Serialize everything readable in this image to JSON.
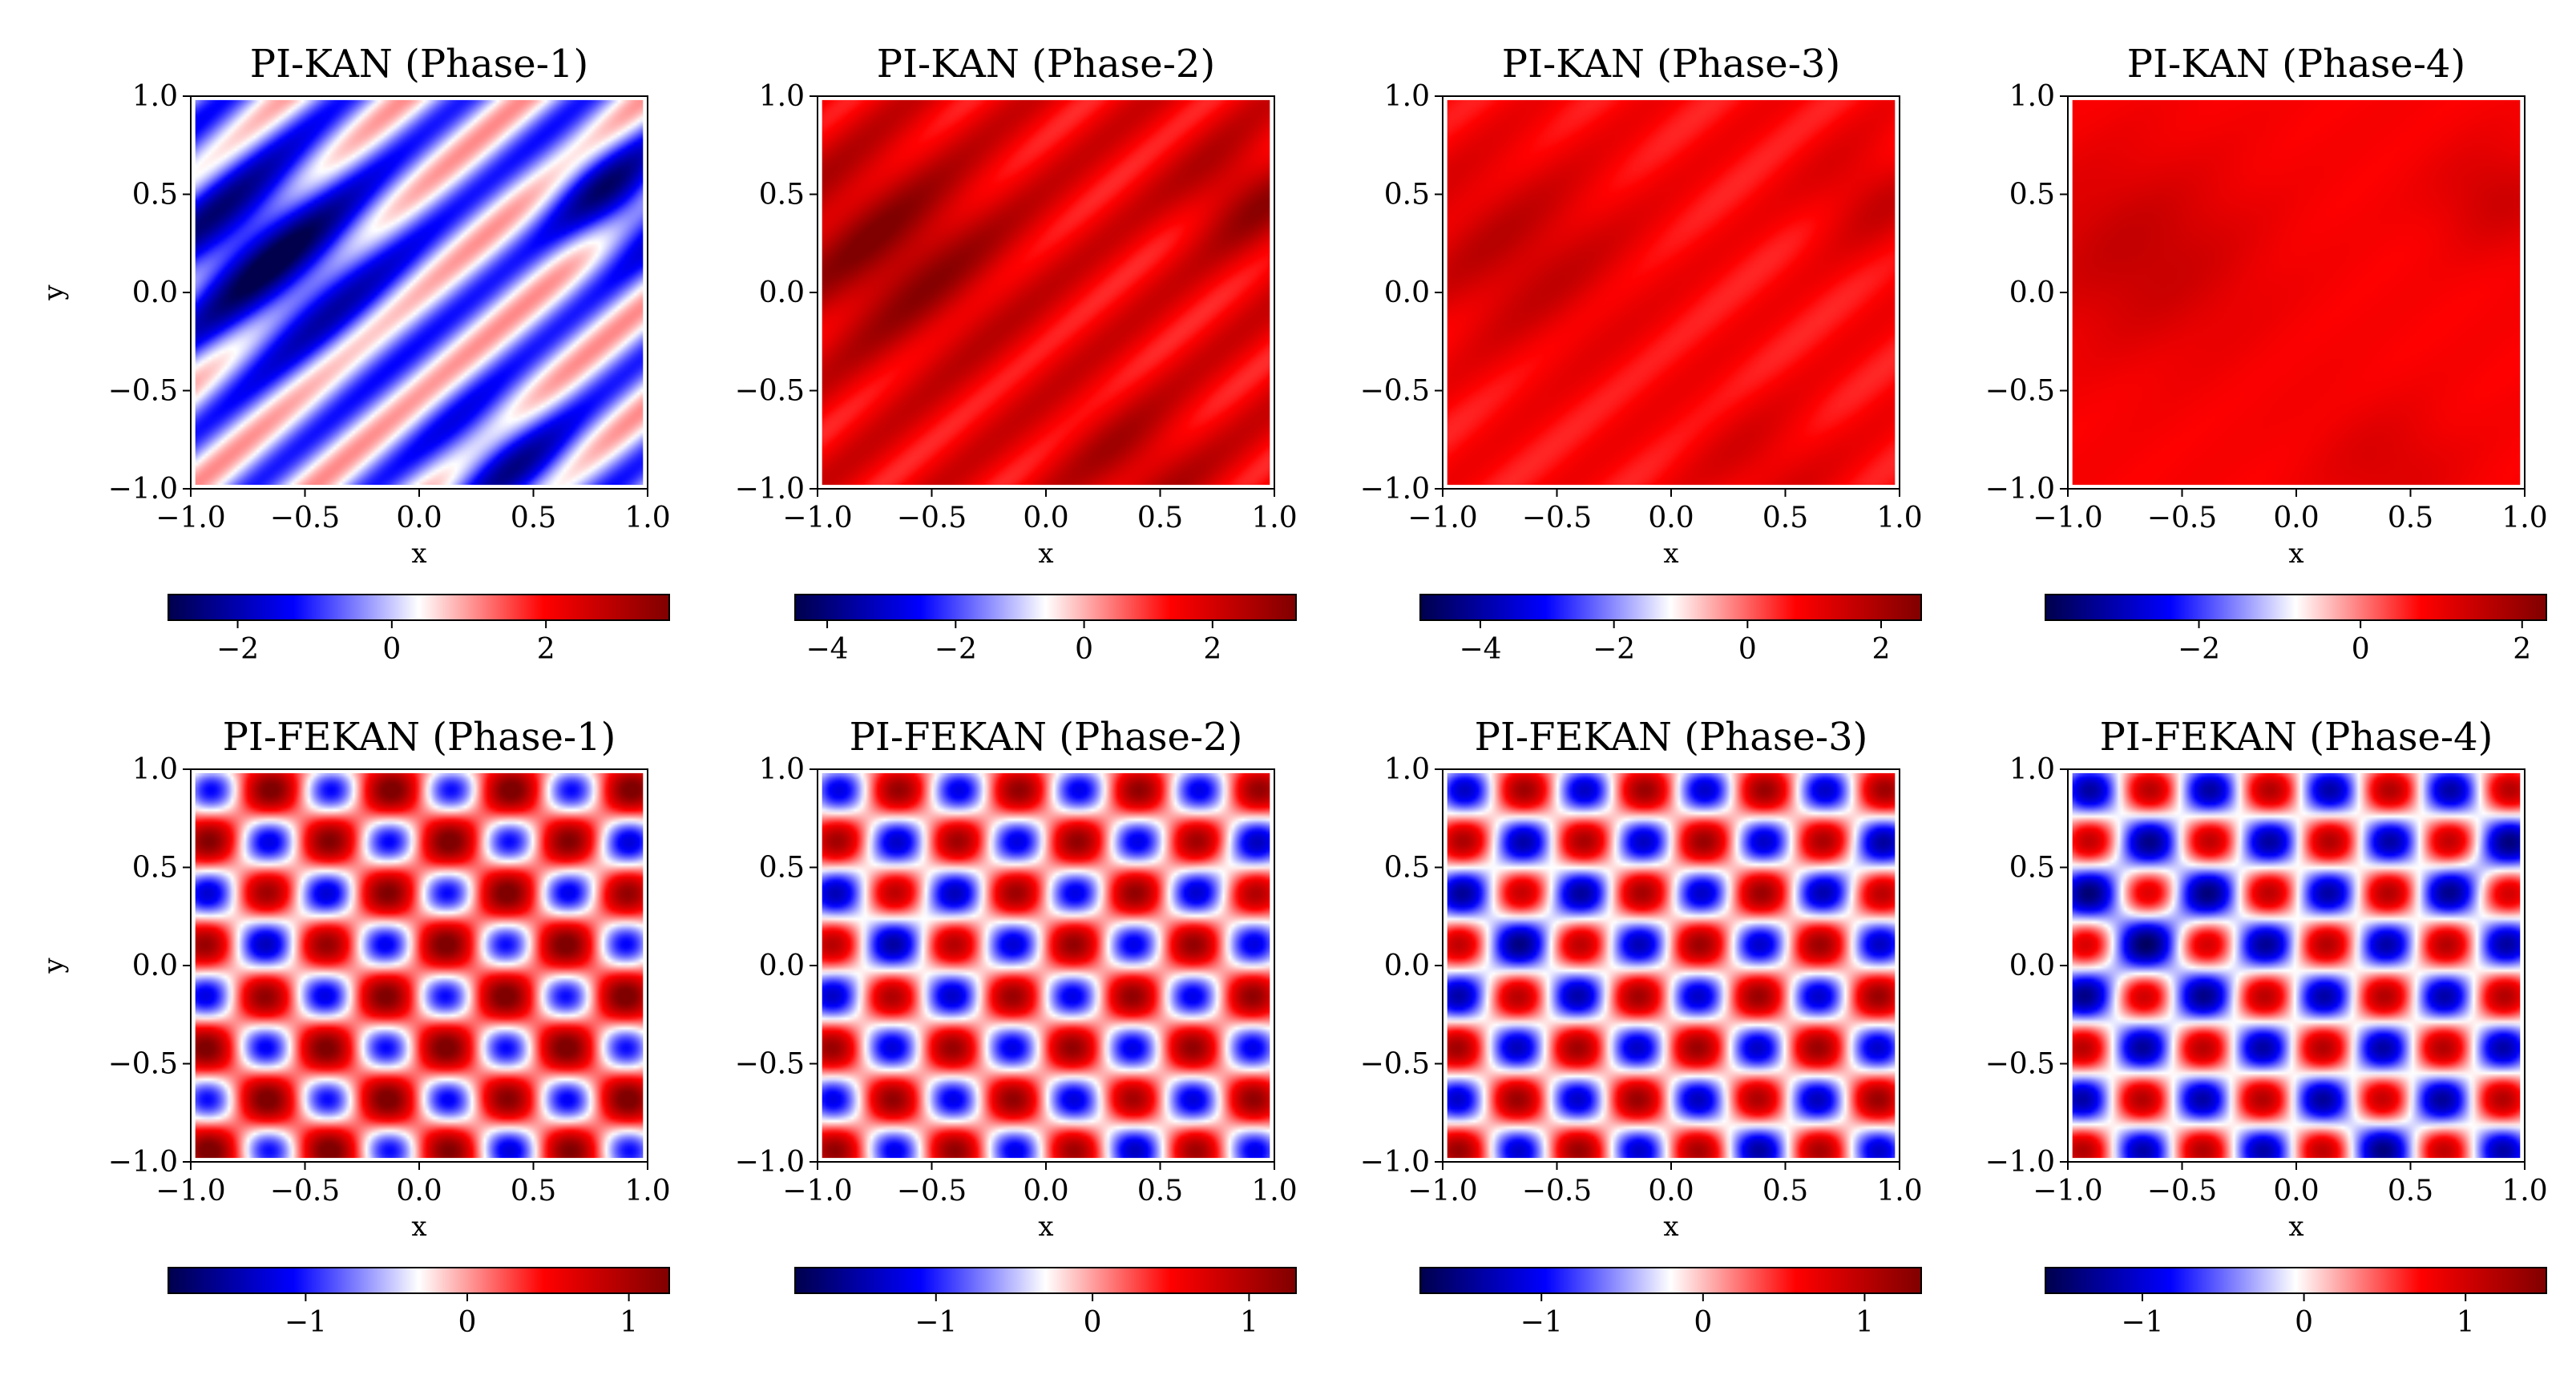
{
  "chart_data": {
    "type": "heatmap",
    "colormap": "seismic",
    "panels": [
      {
        "title": "PI-KAN (Phase-1)",
        "xlabel": "x",
        "ylabel": "y",
        "xlim": [
          -1.0,
          1.0
        ],
        "ylim": [
          -1.0,
          1.0
        ],
        "xticks": [
          "−1.0",
          "−0.5",
          "0.0",
          "0.5",
          "1.0"
        ],
        "yticks": [
          "1.0",
          "0.5",
          "0.0",
          "−0.5",
          "−1.0"
        ],
        "colorbar": {
          "range": [
            -2.9,
            3.6
          ],
          "ticks": [
            -2,
            0,
            2
          ],
          "tick_labels": [
            "−2",
            "0",
            "2"
          ]
        },
        "field": {
          "kind": "kan",
          "amp": 2.4,
          "offset": 0.0,
          "bias_scale": 1.0,
          "bias_sign": -1,
          "seed": 1
        }
      },
      {
        "title": "PI-KAN (Phase-2)",
        "xlabel": "x",
        "ylabel": "",
        "xlim": [
          -1.0,
          1.0
        ],
        "ylim": [
          -1.0,
          1.0
        ],
        "xticks": [
          "−1.0",
          "−0.5",
          "0.0",
          "0.5",
          "1.0"
        ],
        "yticks": [
          "1.0",
          "0.5",
          "0.0",
          "−0.5",
          "−1.0"
        ],
        "colorbar": {
          "range": [
            -4.5,
            3.3
          ],
          "ticks": [
            -4,
            -2,
            0,
            2
          ],
          "tick_labels": [
            "−4",
            "−2",
            "0",
            "2"
          ]
        },
        "field": {
          "kind": "kan",
          "amp": 1.6,
          "offset": 1.6,
          "bias_scale": 0.6,
          "bias_sign": 1,
          "seed": 2
        }
      },
      {
        "title": "PI-KAN (Phase-3)",
        "xlabel": "x",
        "ylabel": "",
        "xlim": [
          -1.0,
          1.0
        ],
        "ylim": [
          -1.0,
          1.0
        ],
        "xticks": [
          "−1.0",
          "−0.5",
          "0.0",
          "0.5",
          "1.0"
        ],
        "yticks": [
          "1.0",
          "0.5",
          "0.0",
          "−0.5",
          "−1.0"
        ],
        "colorbar": {
          "range": [
            -4.9,
            2.6
          ],
          "ticks": [
            -4,
            -2,
            0,
            2
          ],
          "tick_labels": [
            "−4",
            "−2",
            "0",
            "2"
          ]
        },
        "field": {
          "kind": "kan",
          "amp": 1.2,
          "offset": 0.7,
          "bias_scale": 0.4,
          "bias_sign": 1,
          "seed": 3
        }
      },
      {
        "title": "PI-KAN (Phase-4)",
        "xlabel": "x",
        "ylabel": "",
        "xlim": [
          -1.0,
          1.0
        ],
        "ylim": [
          -1.0,
          1.0
        ],
        "xticks": [
          "−1.0",
          "−0.5",
          "0.0",
          "0.5",
          "1.0"
        ],
        "yticks": [
          "1.0",
          "0.5",
          "0.0",
          "−0.5",
          "−1.0"
        ],
        "colorbar": {
          "range": [
            -3.9,
            2.3
          ],
          "ticks": [
            -2,
            0,
            2
          ],
          "tick_labels": [
            "−2",
            "0",
            "2"
          ]
        },
        "field": {
          "kind": "kan",
          "amp": 1.0,
          "offset": 0.8,
          "bias_scale": 0.3,
          "bias_sign": 1,
          "seed": 4
        }
      },
      {
        "title": "PI-FEKAN (Phase-1)",
        "xlabel": "x",
        "ylabel": "y",
        "xlim": [
          -1.0,
          1.0
        ],
        "ylim": [
          -1.0,
          1.0
        ],
        "xticks": [
          "−1.0",
          "−0.5",
          "0.0",
          "0.5",
          "1.0"
        ],
        "yticks": [
          "1.0",
          "0.5",
          "0.0",
          "−0.5",
          "−1.0"
        ],
        "colorbar": {
          "range": [
            -1.85,
            1.25
          ],
          "ticks": [
            -1,
            0,
            1
          ],
          "tick_labels": [
            "−1",
            "0",
            "1"
          ]
        },
        "field": {
          "kind": "fekan",
          "amp": 1.2,
          "offset": 0.15,
          "bias_scale": 0.15,
          "bias_sign": -1,
          "seed": 5
        }
      },
      {
        "title": "PI-FEKAN (Phase-2)",
        "xlabel": "x",
        "ylabel": "",
        "xlim": [
          -1.0,
          1.0
        ],
        "ylim": [
          -1.0,
          1.0
        ],
        "xticks": [
          "−1.0",
          "−0.5",
          "0.0",
          "0.5",
          "1.0"
        ],
        "yticks": [
          "1.0",
          "0.5",
          "0.0",
          "−0.5",
          "−1.0"
        ],
        "colorbar": {
          "range": [
            -1.9,
            1.3
          ],
          "ticks": [
            -1,
            0,
            1
          ],
          "tick_labels": [
            "−1",
            "0",
            "1"
          ]
        },
        "field": {
          "kind": "fekan",
          "amp": 1.2,
          "offset": 0.0,
          "bias_scale": 0.15,
          "bias_sign": -1,
          "seed": 6
        }
      },
      {
        "title": "PI-FEKAN (Phase-3)",
        "xlabel": "x",
        "ylabel": "",
        "xlim": [
          -1.0,
          1.0
        ],
        "ylim": [
          -1.0,
          1.0
        ],
        "xticks": [
          "−1.0",
          "−0.5",
          "0.0",
          "0.5",
          "1.0"
        ],
        "yticks": [
          "1.0",
          "0.5",
          "0.0",
          "−0.5",
          "−1.0"
        ],
        "colorbar": {
          "range": [
            -1.75,
            1.35
          ],
          "ticks": [
            -1,
            0,
            1
          ],
          "tick_labels": [
            "−1",
            "0",
            "1"
          ]
        },
        "field": {
          "kind": "fekan",
          "amp": 1.2,
          "offset": 0.0,
          "bias_scale": 0.15,
          "bias_sign": -1,
          "seed": 7
        }
      },
      {
        "title": "PI-FEKAN (Phase-4)",
        "xlabel": "x",
        "ylabel": "",
        "xlim": [
          -1.0,
          1.0
        ],
        "ylim": [
          -1.0,
          1.0
        ],
        "xticks": [
          "−1.0",
          "−0.5",
          "0.0",
          "0.5",
          "1.0"
        ],
        "yticks": [
          "1.0",
          "0.5",
          "0.0",
          "−0.5",
          "−1.0"
        ],
        "colorbar": {
          "range": [
            -1.6,
            1.5
          ],
          "ticks": [
            -1,
            0,
            1
          ],
          "tick_labels": [
            "−1",
            "0",
            "1"
          ]
        },
        "field": {
          "kind": "fekan",
          "amp": 1.2,
          "offset": 0.0,
          "bias_scale": 0.15,
          "bias_sign": -1,
          "seed": 8
        }
      }
    ]
  }
}
